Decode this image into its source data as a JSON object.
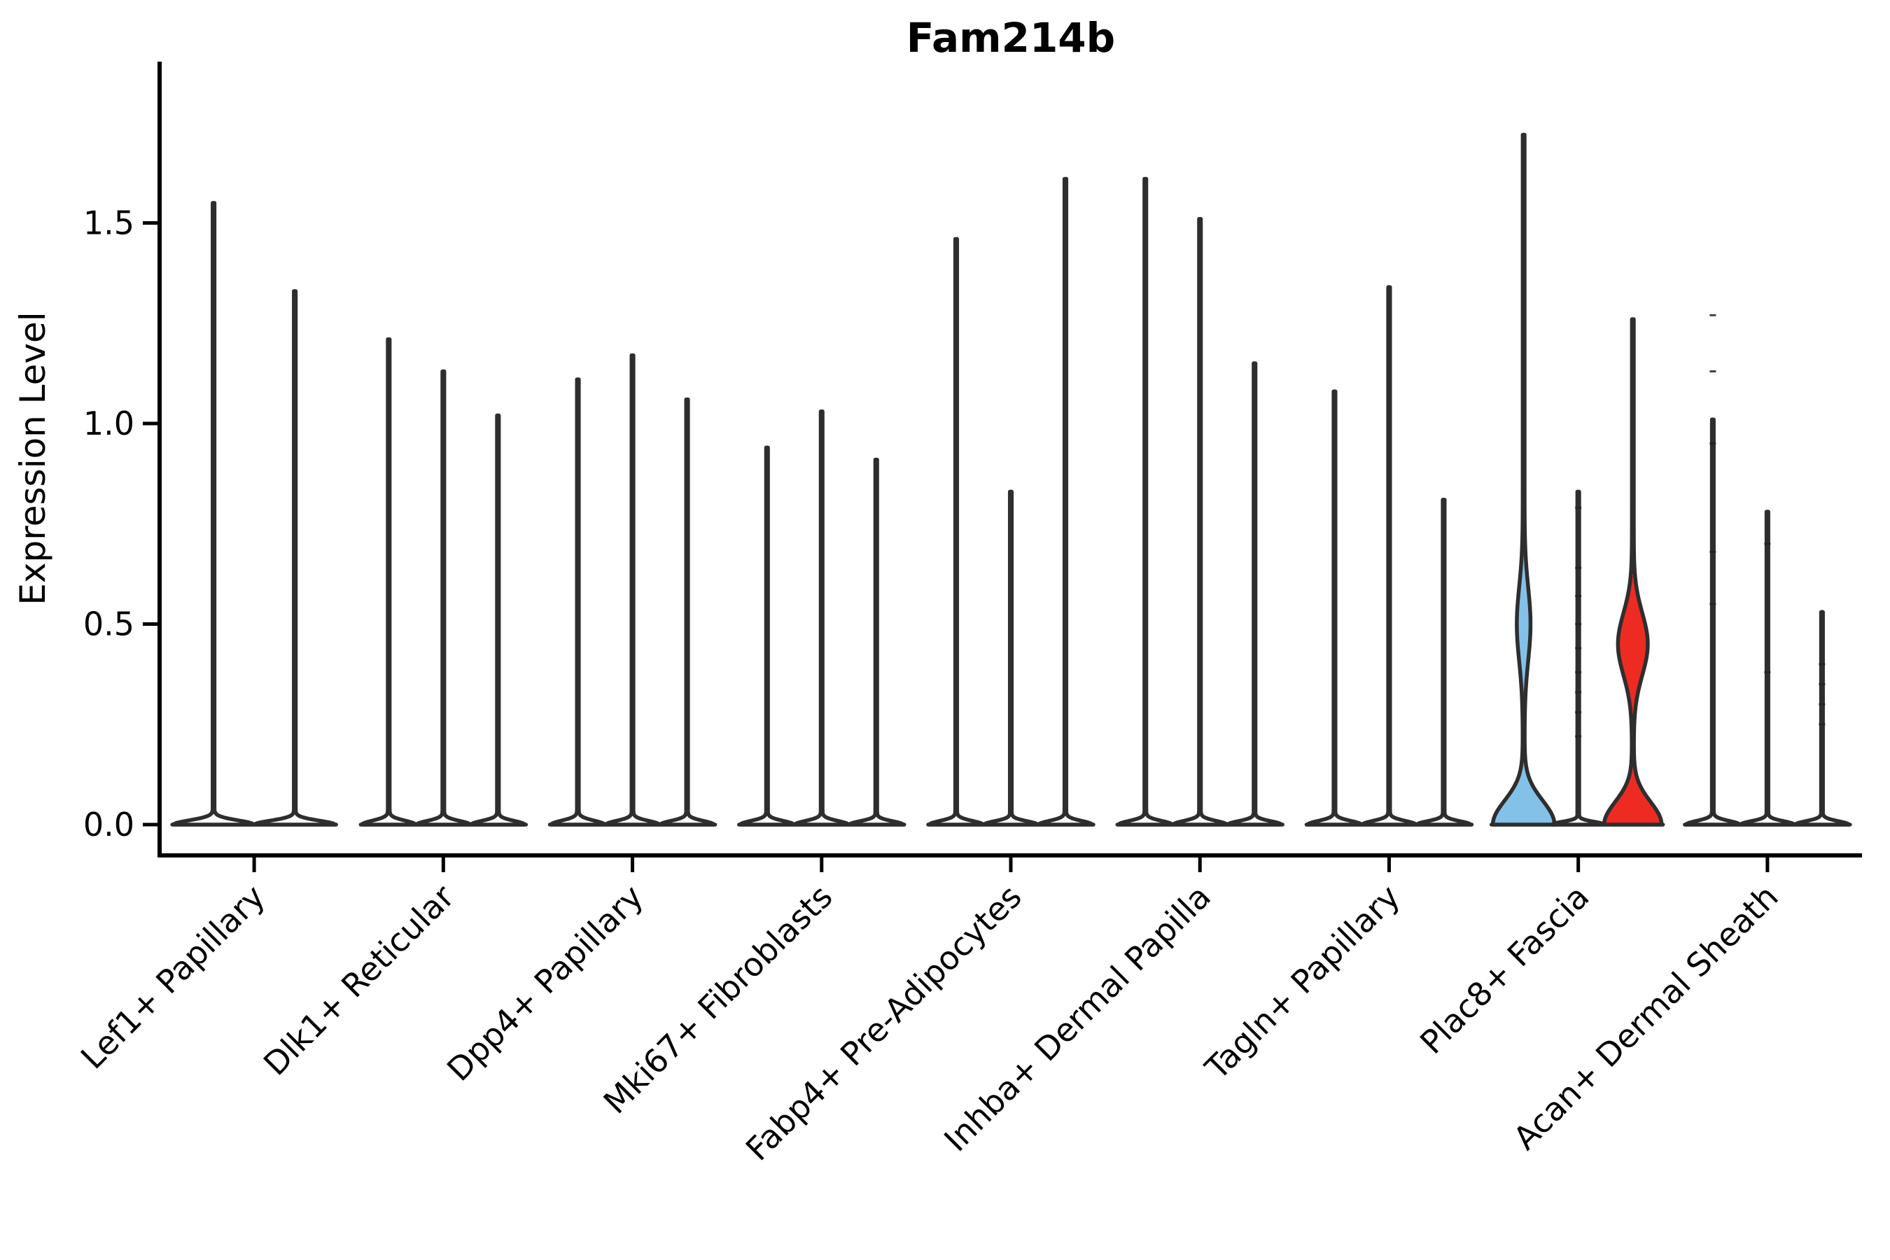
{
  "title": "Fam214b",
  "ylabel": "Expression Level",
  "colors": {
    "background": "#ffffff",
    "axis": "#000000",
    "violin_edge": "#2e2e2e",
    "white": "#ffffff",
    "blue": "#84C1E8",
    "red": "#EE2B23"
  },
  "chart_data": {
    "type": "violin",
    "title": "Fam214b",
    "xlabel": "",
    "ylabel": "Expression Level",
    "ylim": [
      -0.08,
      1.9
    ],
    "yticks": [
      {
        "value": 0.0,
        "label": "0.0"
      },
      {
        "value": 0.5,
        "label": "0.5"
      },
      {
        "value": 1.0,
        "label": "1.0"
      },
      {
        "value": 1.5,
        "label": "1.5"
      }
    ],
    "grid": false,
    "legend": "none",
    "categories": [
      "Lef1+ Papillary",
      "Dlk1+ Reticular",
      "Dpp4+ Papillary",
      "Mki67+ Fibroblasts",
      "Fabp4+ Pre-Adipocytes",
      "Inhba+ Dermal Papilla",
      "Tagln+ Papillary",
      "Plac8+ Fascia",
      "Acan+ Dermal Sheath"
    ],
    "groups": [
      {
        "label": "Lef1+ Papillary",
        "violins": [
          {
            "peak": 1.55,
            "fill": "white",
            "bell_sigma": 0.015,
            "bell_halfwidth": 57,
            "bulge": null,
            "points": []
          },
          {
            "peak": 1.33,
            "fill": "white",
            "bell_sigma": 0.014,
            "bell_halfwidth": 57,
            "bulge": null,
            "points": []
          }
        ]
      },
      {
        "label": "Dlk1+ Reticular",
        "violins": [
          {
            "peak": 1.21,
            "fill": "white",
            "bell_sigma": 0.014,
            "bell_halfwidth": 38,
            "bulge": null,
            "points": []
          },
          {
            "peak": 1.13,
            "fill": "white",
            "bell_sigma": 0.013,
            "bell_halfwidth": 38,
            "bulge": null,
            "points": []
          },
          {
            "peak": 1.02,
            "fill": "white",
            "bell_sigma": 0.013,
            "bell_halfwidth": 38,
            "bulge": null,
            "points": []
          }
        ]
      },
      {
        "label": "Dpp4+ Papillary",
        "violins": [
          {
            "peak": 1.11,
            "fill": "white",
            "bell_sigma": 0.014,
            "bell_halfwidth": 38,
            "bulge": null,
            "points": []
          },
          {
            "peak": 1.17,
            "fill": "white",
            "bell_sigma": 0.013,
            "bell_halfwidth": 38,
            "bulge": null,
            "points": []
          },
          {
            "peak": 1.06,
            "fill": "white",
            "bell_sigma": 0.013,
            "bell_halfwidth": 38,
            "bulge": null,
            "points": []
          }
        ]
      },
      {
        "label": "Mki67+ Fibroblasts",
        "violins": [
          {
            "peak": 0.94,
            "fill": "white",
            "bell_sigma": 0.013,
            "bell_halfwidth": 38,
            "bulge": null,
            "points": []
          },
          {
            "peak": 1.03,
            "fill": "white",
            "bell_sigma": 0.013,
            "bell_halfwidth": 38,
            "bulge": null,
            "points": []
          },
          {
            "peak": 0.91,
            "fill": "white",
            "bell_sigma": 0.012,
            "bell_halfwidth": 38,
            "bulge": null,
            "points": []
          }
        ]
      },
      {
        "label": "Fabp4+ Pre-Adipocytes",
        "violins": [
          {
            "peak": 1.46,
            "fill": "white",
            "bell_sigma": 0.013,
            "bell_halfwidth": 38,
            "bulge": null,
            "points": []
          },
          {
            "peak": 0.83,
            "fill": "white",
            "bell_sigma": 0.012,
            "bell_halfwidth": 38,
            "bulge": null,
            "points": []
          },
          {
            "peak": 1.61,
            "fill": "white",
            "bell_sigma": 0.013,
            "bell_halfwidth": 38,
            "bulge": null,
            "points": []
          }
        ]
      },
      {
        "label": "Inhba+ Dermal Papilla",
        "violins": [
          {
            "peak": 1.61,
            "fill": "white",
            "bell_sigma": 0.013,
            "bell_halfwidth": 38,
            "bulge": null,
            "points": []
          },
          {
            "peak": 1.51,
            "fill": "white",
            "bell_sigma": 0.013,
            "bell_halfwidth": 38,
            "bulge": null,
            "points": []
          },
          {
            "peak": 1.15,
            "fill": "white",
            "bell_sigma": 0.012,
            "bell_halfwidth": 38,
            "bulge": null,
            "points": []
          }
        ]
      },
      {
        "label": "Tagln+ Papillary",
        "violins": [
          {
            "peak": 1.08,
            "fill": "white",
            "bell_sigma": 0.013,
            "bell_halfwidth": 38,
            "bulge": null,
            "points": []
          },
          {
            "peak": 1.34,
            "fill": "white",
            "bell_sigma": 0.013,
            "bell_halfwidth": 38,
            "bulge": null,
            "points": []
          },
          {
            "peak": 0.81,
            "fill": "white",
            "bell_sigma": 0.012,
            "bell_halfwidth": 38,
            "bulge": null,
            "points": []
          }
        ]
      },
      {
        "label": "Plac8+ Fascia",
        "violins": [
          {
            "peak": 1.72,
            "fill": "blue",
            "bell_sigma": 0.085,
            "bell_halfwidth": 44,
            "bulge": {
              "center": 0.5,
              "sigma": 0.13,
              "amp": 8.5
            },
            "points": []
          },
          {
            "peak": 0.83,
            "fill": "white",
            "bell_sigma": 0.01,
            "bell_halfwidth": 37,
            "bulge": null,
            "points": [
              0.79,
              0.64,
              0.57,
              0.5,
              0.44,
              0.38,
              0.33,
              0.28,
              0.22
            ]
          },
          {
            "peak": 1.26,
            "fill": "red",
            "bell_sigma": 0.08,
            "bell_halfwidth": 41,
            "bulge": {
              "center": 0.45,
              "sigma": 0.11,
              "amp": 20
            },
            "points": []
          }
        ]
      },
      {
        "label": "Acan+ Dermal Sheath",
        "violins": [
          {
            "peak": 1.01,
            "fill": "white",
            "bell_sigma": 0.013,
            "bell_halfwidth": 38,
            "bulge": null,
            "points": [
              1.27,
              1.13,
              0.95,
              0.68,
              0.55
            ]
          },
          {
            "peak": 0.78,
            "fill": "white",
            "bell_sigma": 0.012,
            "bell_halfwidth": 38,
            "bulge": null,
            "points": [
              0.7,
              0.38
            ]
          },
          {
            "peak": 0.53,
            "fill": "white",
            "bell_sigma": 0.012,
            "bell_halfwidth": 38,
            "bulge": null,
            "points": [
              0.4,
              0.35,
              0.3,
              0.25
            ]
          }
        ]
      }
    ]
  }
}
